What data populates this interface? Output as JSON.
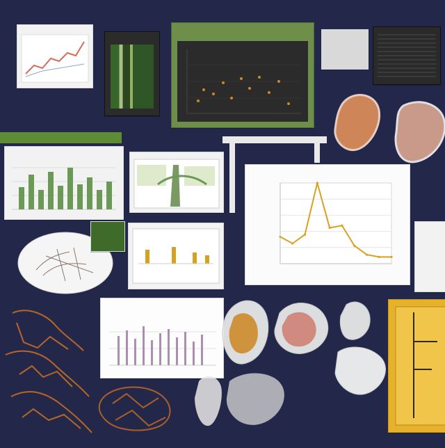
{
  "image": {
    "type": "collage",
    "background": "#23284a",
    "accent_colors": [
      "#5e8b36",
      "#d8a21f",
      "#c96b28",
      "#f2f2f2"
    ]
  },
  "labels": {
    "top_left_header": "",
    "small_chart_header": "",
    "top_strip_text": "",
    "top_right_text": "",
    "mid_left_header": "",
    "mid_panel_header": "",
    "big_chart_title": "",
    "big_chart_xlabel": "",
    "bottom_chart_title": "",
    "bottom_right_label": "",
    "small_label_1": "",
    "small_label_2": "",
    "small_label_3": ""
  },
  "chart_data": [
    {
      "type": "line",
      "title": "",
      "xlabel": "",
      "ylabel": "",
      "x": [
        1,
        2,
        3,
        4,
        5,
        6,
        7,
        8,
        9,
        10
      ],
      "series": [
        {
          "values": [
            1.2,
            0.9,
            1.3,
            3.6,
            1.6,
            1.7,
            0.8,
            0.4,
            0.3,
            0.3
          ]
        }
      ]
    }
  ]
}
